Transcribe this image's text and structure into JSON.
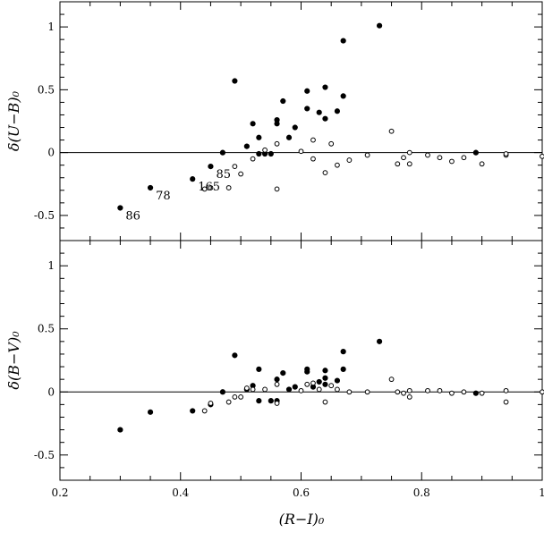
{
  "chart_data": {
    "type": "scatter",
    "x_ticks": [
      "0.2",
      "0.4",
      "0.6",
      "0.8",
      "1"
    ],
    "y_ticks": [
      "-0.5",
      "0",
      "0.5",
      "1"
    ],
    "xlabel": "(R−I)₀",
    "xlim": [
      0.2,
      1.0
    ],
    "panels": [
      {
        "ylabel": "δ(U−B)₀",
        "ylim": [
          -0.7,
          1.2
        ],
        "zero_line": true,
        "series": [
          {
            "marker": "filled-circle",
            "points": [
              [
                0.3,
                -0.44
              ],
              [
                0.35,
                -0.28
              ],
              [
                0.42,
                -0.21
              ],
              [
                0.45,
                -0.11
              ],
              [
                0.47,
                0.0
              ],
              [
                0.49,
                0.57
              ],
              [
                0.51,
                0.05
              ],
              [
                0.52,
                0.23
              ],
              [
                0.53,
                0.12
              ],
              [
                0.53,
                -0.01
              ],
              [
                0.54,
                -0.01
              ],
              [
                0.55,
                -0.01
              ],
              [
                0.56,
                0.23
              ],
              [
                0.56,
                0.26
              ],
              [
                0.57,
                0.41
              ],
              [
                0.58,
                0.12
              ],
              [
                0.59,
                0.2
              ],
              [
                0.61,
                0.49
              ],
              [
                0.61,
                0.35
              ],
              [
                0.63,
                0.32
              ],
              [
                0.64,
                0.52
              ],
              [
                0.64,
                0.27
              ],
              [
                0.66,
                0.33
              ],
              [
                0.67,
                0.45
              ],
              [
                0.67,
                0.89
              ],
              [
                0.73,
                1.01
              ],
              [
                0.89,
                0.0
              ]
            ]
          },
          {
            "marker": "open-circle",
            "points": [
              [
                0.44,
                -0.29
              ],
              [
                0.45,
                -0.28
              ],
              [
                0.48,
                -0.28
              ],
              [
                0.49,
                -0.11
              ],
              [
                0.5,
                -0.17
              ],
              [
                0.52,
                -0.05
              ],
              [
                0.54,
                0.02
              ],
              [
                0.56,
                0.07
              ],
              [
                0.56,
                -0.29
              ],
              [
                0.6,
                0.01
              ],
              [
                0.62,
                0.1
              ],
              [
                0.62,
                -0.05
              ],
              [
                0.64,
                -0.16
              ],
              [
                0.65,
                0.07
              ],
              [
                0.66,
                -0.1
              ],
              [
                0.68,
                -0.06
              ],
              [
                0.71,
                -0.02
              ],
              [
                0.75,
                0.17
              ],
              [
                0.76,
                -0.09
              ],
              [
                0.77,
                -0.04
              ],
              [
                0.78,
                0.0
              ],
              [
                0.78,
                -0.09
              ],
              [
                0.81,
                -0.02
              ],
              [
                0.83,
                -0.04
              ],
              [
                0.85,
                -0.07
              ],
              [
                0.87,
                -0.04
              ],
              [
                0.9,
                -0.09
              ],
              [
                0.94,
                -0.02
              ],
              [
                0.94,
                -0.01
              ],
              [
                1.0,
                -0.03
              ]
            ]
          }
        ],
        "annotations": [
          {
            "text": "86",
            "x": 0.3,
            "y": -0.44
          },
          {
            "text": "78",
            "x": 0.35,
            "y": -0.28
          },
          {
            "text": "165",
            "x": 0.42,
            "y": -0.21
          },
          {
            "text": "85",
            "x": 0.45,
            "y": -0.11
          }
        ]
      },
      {
        "ylabel": "δ(B−V)₀",
        "ylim": [
          -0.7,
          1.2
        ],
        "zero_line": true,
        "series": [
          {
            "marker": "filled-circle",
            "points": [
              [
                0.3,
                -0.3
              ],
              [
                0.35,
                -0.16
              ],
              [
                0.42,
                -0.15
              ],
              [
                0.45,
                -0.1
              ],
              [
                0.47,
                0.0
              ],
              [
                0.49,
                0.29
              ],
              [
                0.51,
                0.02
              ],
              [
                0.52,
                0.05
              ],
              [
                0.53,
                0.18
              ],
              [
                0.53,
                -0.07
              ],
              [
                0.55,
                -0.07
              ],
              [
                0.56,
                0.1
              ],
              [
                0.56,
                -0.07
              ],
              [
                0.57,
                0.15
              ],
              [
                0.58,
                0.02
              ],
              [
                0.59,
                0.04
              ],
              [
                0.61,
                0.16
              ],
              [
                0.61,
                0.18
              ],
              [
                0.62,
                0.04
              ],
              [
                0.63,
                0.08
              ],
              [
                0.64,
                0.06
              ],
              [
                0.64,
                0.11
              ],
              [
                0.64,
                0.17
              ],
              [
                0.66,
                0.09
              ],
              [
                0.67,
                0.18
              ],
              [
                0.67,
                0.32
              ],
              [
                0.73,
                0.4
              ],
              [
                0.89,
                -0.01
              ]
            ]
          },
          {
            "marker": "open-circle",
            "points": [
              [
                0.44,
                -0.15
              ],
              [
                0.45,
                -0.09
              ],
              [
                0.48,
                -0.08
              ],
              [
                0.49,
                -0.04
              ],
              [
                0.5,
                -0.04
              ],
              [
                0.51,
                0.03
              ],
              [
                0.52,
                0.02
              ],
              [
                0.54,
                0.02
              ],
              [
                0.56,
                0.06
              ],
              [
                0.56,
                -0.09
              ],
              [
                0.6,
                0.01
              ],
              [
                0.61,
                0.06
              ],
              [
                0.62,
                0.07
              ],
              [
                0.63,
                0.02
              ],
              [
                0.64,
                -0.08
              ],
              [
                0.65,
                0.05
              ],
              [
                0.66,
                0.02
              ],
              [
                0.68,
                0.0
              ],
              [
                0.71,
                0.0
              ],
              [
                0.75,
                0.1
              ],
              [
                0.76,
                0.0
              ],
              [
                0.77,
                -0.01
              ],
              [
                0.78,
                0.01
              ],
              [
                0.78,
                -0.04
              ],
              [
                0.81,
                0.01
              ],
              [
                0.83,
                0.01
              ],
              [
                0.85,
                -0.01
              ],
              [
                0.87,
                0.0
              ],
              [
                0.9,
                -0.01
              ],
              [
                0.94,
                0.01
              ],
              [
                0.94,
                -0.08
              ],
              [
                1.0,
                0.0
              ]
            ]
          }
        ],
        "annotations": []
      }
    ]
  }
}
